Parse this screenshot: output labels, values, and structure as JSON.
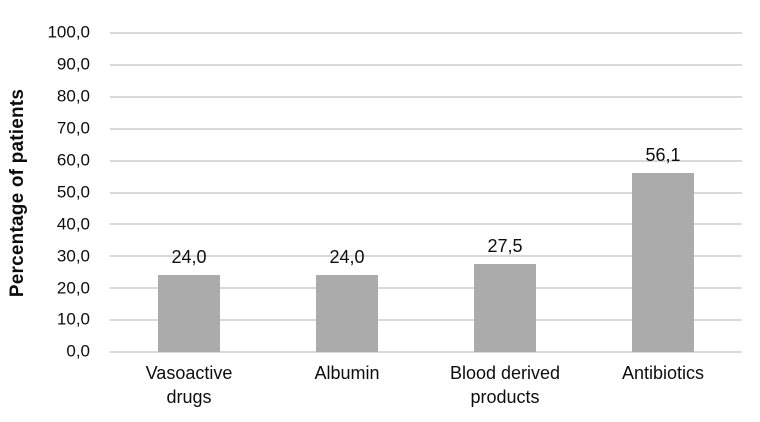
{
  "chart_data": {
    "type": "bar",
    "title": "",
    "categories": [
      "Vasoactive drugs",
      "Albumin",
      "Blood derived products",
      "Antibiotics"
    ],
    "values": [
      24.0,
      24.0,
      27.5,
      56.1
    ],
    "value_labels": [
      "24,0",
      "24,0",
      "27,5",
      "56,1"
    ],
    "xlabel": "",
    "ylabel": "Percentage of patients",
    "ylim": [
      0,
      100
    ],
    "ytick_step": 10,
    "ytick_labels": [
      "0,0",
      "10,0",
      "20,0",
      "30,0",
      "40,0",
      "50,0",
      "60,0",
      "70,0",
      "80,0",
      "90,0",
      "100,0"
    ],
    "decimal_separator": ",",
    "grid": true,
    "legend": "none",
    "colors": {
      "bar": "#ababab",
      "gridline": "#d9d9d9",
      "axis_line": "#d9d9d9",
      "text": "#0d0d0d",
      "background": "#ffffff"
    }
  }
}
